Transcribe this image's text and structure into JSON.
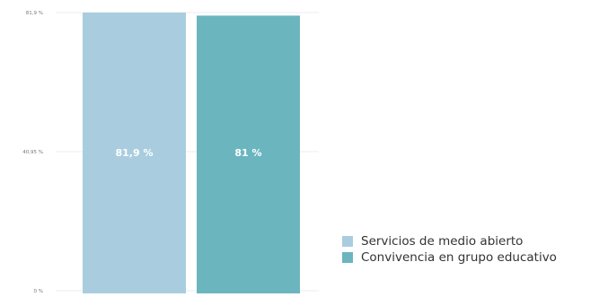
{
  "chart_data": {
    "type": "bar",
    "categories": [
      "Servicios de medio abierto",
      "Convivencia en grupo educativo"
    ],
    "values": [
      81.9,
      81
    ],
    "value_labels": [
      "81,9 %",
      "81 %"
    ],
    "colors": [
      "#a9cddf",
      "#6bb5bf"
    ],
    "ylim": [
      0,
      81.9
    ],
    "yticks": [
      0,
      40.95,
      81.9
    ],
    "ytick_labels": [
      "0 %",
      "40,95 %",
      "81,9 %"
    ],
    "grid": true,
    "legend": "bottom-right",
    "title": "",
    "xlabel": "",
    "ylabel": ""
  }
}
